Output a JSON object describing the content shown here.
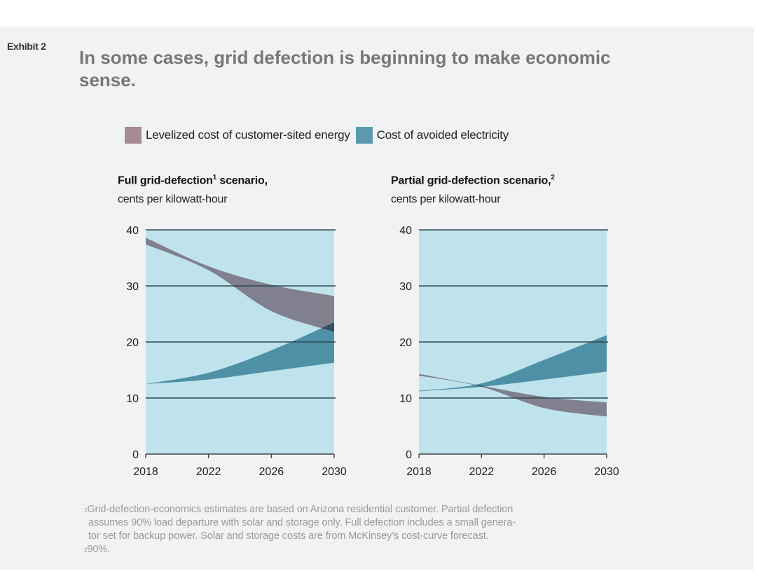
{
  "exhibit_label": "Exhibit 2",
  "headline": "In some cases, grid defection is beginning to make economic sense.",
  "colors": {
    "levelized": "#a68a95",
    "avoided": "#5b9aae",
    "overlap": "#6f7489",
    "plot_bg": "#bfe3ec",
    "gridline": "#2f4a52"
  },
  "legend": [
    {
      "label": "Levelized cost of customer-sited energy",
      "color": "#a68a95"
    },
    {
      "label": "Cost of avoided electricity",
      "color": "#5b9aae"
    }
  ],
  "chart_data": [
    {
      "type": "area",
      "title": "Full grid-defection",
      "title_sup": "1",
      "title_suffix": " scenario,",
      "subtitle": "cents per kilowatt-hour",
      "x": [
        2018,
        2022,
        2026,
        2030
      ],
      "xticks": [
        "2018",
        "2022",
        "2026",
        "2030"
      ],
      "yticks": [
        "0",
        "10",
        "20",
        "30",
        "40"
      ],
      "ylim": [
        0,
        40
      ],
      "grid": true,
      "series": [
        {
          "name": "Levelized cost of customer-sited energy",
          "type": "range",
          "upper": [
            38.6,
            33.5,
            30.2,
            28.2
          ],
          "lower": [
            37.4,
            32.8,
            25.5,
            21.8
          ]
        },
        {
          "name": "Cost of avoided electricity",
          "type": "range",
          "upper": [
            12.5,
            14.5,
            18.5,
            23.5
          ],
          "lower": [
            12.5,
            13.3,
            14.8,
            16.3
          ]
        }
      ]
    },
    {
      "type": "area",
      "title": "Partial grid-defection scenario,",
      "title_sup": "2",
      "title_suffix": "",
      "subtitle": "cents per kilowatt-hour",
      "x": [
        2018,
        2022,
        2026,
        2030
      ],
      "xticks": [
        "2018",
        "2022",
        "2026",
        "2030"
      ],
      "yticks": [
        "0",
        "10",
        "20",
        "30",
        "40"
      ],
      "ylim": [
        0,
        40
      ],
      "grid": true,
      "series": [
        {
          "name": "Levelized cost of customer-sited energy",
          "type": "range",
          "upper": [
            14.3,
            12.2,
            10.2,
            9.2
          ],
          "lower": [
            14.0,
            12.0,
            8.2,
            6.7
          ]
        },
        {
          "name": "Cost of avoided electricity",
          "type": "range",
          "upper": [
            11.3,
            12.6,
            16.8,
            21.2
          ],
          "lower": [
            11.2,
            12.0,
            13.3,
            14.7
          ]
        }
      ]
    }
  ],
  "footnotes": {
    "note1_marker": "1",
    "note1_lines": [
      "Grid-defection-economics estimates are based on Arizona residential customer. Partial defection",
      "assumes 90% load departure with solar and storage only. Full defection includes a small genera-",
      "tor set for backup power. Solar and storage costs are from McKinsey's cost-curve forecast."
    ],
    "note2_marker": "2",
    "note2_text": "90%."
  }
}
